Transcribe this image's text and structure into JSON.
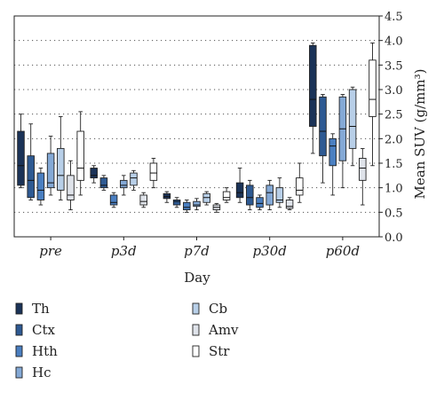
{
  "chart_data": {
    "type": "box",
    "categories": [
      "pre",
      "p3d",
      "p7d",
      "p30d",
      "p60d"
    ],
    "xlabel": "Day",
    "ylabel": "Mean SUV (g/mm³)",
    "ylim": [
      0.0,
      4.5
    ],
    "yticks": [
      "0.0",
      "0.5",
      "1.0",
      "1.5",
      "2.0",
      "2.5",
      "3.0",
      "3.5",
      "4.0",
      "4.5"
    ],
    "y_axis_side": "right",
    "grid": "horizontal-dotted",
    "legend_position": "bottom",
    "series": [
      {
        "name": "Th",
        "color": "#1b3358",
        "boxes": [
          {
            "min": 1.0,
            "q1": 1.05,
            "median": 1.45,
            "q3": 2.15,
            "max": 2.5
          },
          {
            "min": 1.1,
            "q1": 1.2,
            "median": 1.25,
            "q3": 1.4,
            "max": 1.45
          },
          {
            "min": 0.7,
            "q1": 0.78,
            "median": 0.82,
            "q3": 0.88,
            "max": 0.92
          },
          {
            "min": 0.7,
            "q1": 0.8,
            "median": 0.9,
            "q3": 1.1,
            "max": 1.4
          },
          {
            "min": 1.7,
            "q1": 2.25,
            "median": 2.8,
            "q3": 3.9,
            "max": 3.95
          }
        ]
      },
      {
        "name": "Ctx",
        "color": "#2e5a93",
        "boxes": [
          {
            "min": 0.75,
            "q1": 0.8,
            "median": 1.15,
            "q3": 1.65,
            "max": 2.3
          },
          {
            "min": 0.95,
            "q1": 1.0,
            "median": 1.05,
            "q3": 1.2,
            "max": 1.25
          },
          {
            "min": 0.6,
            "q1": 0.65,
            "median": 0.72,
            "q3": 0.75,
            "max": 0.8
          },
          {
            "min": 0.55,
            "q1": 0.65,
            "median": 0.8,
            "q3": 1.05,
            "max": 1.15
          },
          {
            "min": 1.1,
            "q1": 1.65,
            "median": 2.15,
            "q3": 2.85,
            "max": 2.9
          }
        ]
      },
      {
        "name": "Hth",
        "color": "#4a7fc1",
        "boxes": [
          {
            "min": 0.65,
            "q1": 0.75,
            "median": 0.95,
            "q3": 1.3,
            "max": 1.4
          },
          {
            "min": 0.6,
            "q1": 0.65,
            "median": 0.7,
            "q3": 0.85,
            "max": 0.9
          },
          {
            "min": 0.5,
            "q1": 0.55,
            "median": 0.6,
            "q3": 0.7,
            "max": 0.75
          },
          {
            "min": 0.55,
            "q1": 0.6,
            "median": 0.68,
            "q3": 0.8,
            "max": 0.85
          },
          {
            "min": 0.85,
            "q1": 1.45,
            "median": 1.85,
            "q3": 2.0,
            "max": 2.1
          }
        ]
      },
      {
        "name": "Hc",
        "color": "#84a9d6",
        "boxes": [
          {
            "min": 0.85,
            "q1": 1.0,
            "median": 1.1,
            "q3": 1.7,
            "max": 2.05
          },
          {
            "min": 0.85,
            "q1": 1.0,
            "median": 1.05,
            "q3": 1.15,
            "max": 1.25
          },
          {
            "min": 0.55,
            "q1": 0.62,
            "median": 0.65,
            "q3": 0.72,
            "max": 0.78
          },
          {
            "min": 0.55,
            "q1": 0.65,
            "median": 0.9,
            "q3": 1.05,
            "max": 1.15
          },
          {
            "min": 1.0,
            "q1": 1.55,
            "median": 2.2,
            "q3": 2.85,
            "max": 2.9
          }
        ]
      },
      {
        "name": "Cb",
        "color": "#b8cfe8",
        "boxes": [
          {
            "min": 0.75,
            "q1": 0.95,
            "median": 1.25,
            "q3": 1.8,
            "max": 2.45
          },
          {
            "min": 0.95,
            "q1": 1.05,
            "median": 1.2,
            "q3": 1.3,
            "max": 1.35
          },
          {
            "min": 0.65,
            "q1": 0.7,
            "median": 0.8,
            "q3": 0.88,
            "max": 0.92
          },
          {
            "min": 0.6,
            "q1": 0.7,
            "median": 0.75,
            "q3": 1.0,
            "max": 1.2
          },
          {
            "min": 1.45,
            "q1": 1.8,
            "median": 2.25,
            "q3": 3.0,
            "max": 3.05
          }
        ]
      },
      {
        "name": "Amv",
        "color": "#dfe3ea",
        "boxes": [
          {
            "min": 0.55,
            "q1": 0.75,
            "median": 0.85,
            "q3": 1.25,
            "max": 1.55
          },
          {
            "min": 0.6,
            "q1": 0.65,
            "median": 0.72,
            "q3": 0.85,
            "max": 0.9
          },
          {
            "min": 0.5,
            "q1": 0.55,
            "median": 0.6,
            "q3": 0.65,
            "max": 0.68
          },
          {
            "min": 0.55,
            "q1": 0.58,
            "median": 0.62,
            "q3": 0.75,
            "max": 0.8
          },
          {
            "min": 0.65,
            "q1": 1.15,
            "median": 1.4,
            "q3": 1.6,
            "max": 1.8
          }
        ]
      },
      {
        "name": "Str",
        "color": "#ffffff",
        "boxes": [
          {
            "min": 0.85,
            "q1": 1.15,
            "median": 1.4,
            "q3": 2.15,
            "max": 2.55
          },
          {
            "min": 1.0,
            "q1": 1.15,
            "median": 1.3,
            "q3": 1.5,
            "max": 1.6
          },
          {
            "min": 0.7,
            "q1": 0.75,
            "median": 0.8,
            "q3": 0.92,
            "max": 1.0
          },
          {
            "min": 0.7,
            "q1": 0.85,
            "median": 0.95,
            "q3": 1.2,
            "max": 1.5
          },
          {
            "min": 1.45,
            "q1": 2.45,
            "median": 2.8,
            "q3": 3.6,
            "max": 3.95
          }
        ]
      }
    ]
  }
}
